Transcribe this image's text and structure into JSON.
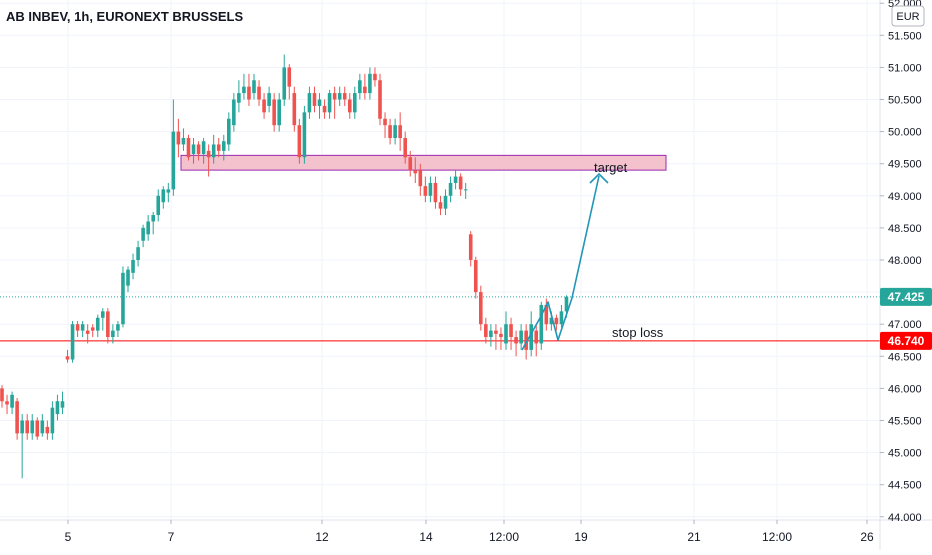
{
  "header": {
    "title": "AB INBEV, 1h, EURONEXT BRUSSELS"
  },
  "currency_button": {
    "label": "EUR"
  },
  "annotations": {
    "target_label": "target",
    "stop_loss_label": "stop loss"
  },
  "price_badges": {
    "last": "47.425",
    "stop_loss": "46.740"
  },
  "colors": {
    "up": "#26a69a",
    "down": "#ef5350",
    "stop_line": "#ff0000",
    "zone_fill": "#f4c2cc",
    "zone_border": "#9c27b0",
    "arrow": "#2196b6",
    "last_badge": "#26a69a",
    "stop_badge": "#ff0000",
    "grid": "#f0f3fa"
  },
  "chart_data": {
    "type": "candlestick",
    "title": "AB INBEV, 1h, EURONEXT BRUSSELS",
    "currency": "EUR",
    "x_ticks": [
      "5",
      "7",
      "12",
      "14",
      "12:00",
      "19",
      "21",
      "12:00",
      "26"
    ],
    "y_ticks": [
      "44.000",
      "44.500",
      "45.000",
      "45.500",
      "46.000",
      "46.500",
      "47.000",
      "47.500",
      "48.000",
      "48.500",
      "49.000",
      "49.500",
      "50.000",
      "50.500",
      "51.000",
      "51.500",
      "52.000"
    ],
    "ylim": [
      43.95,
      52.05
    ],
    "last_price": 47.425,
    "stop_loss": 46.74,
    "target_zone": [
      49.4,
      49.63
    ],
    "candles": [
      [
        46.0,
        45.8,
        46.05,
        45.7
      ],
      [
        45.8,
        45.75,
        45.9,
        45.6
      ],
      [
        45.7,
        45.9,
        45.95,
        45.6
      ],
      [
        45.8,
        45.3,
        45.85,
        45.2
      ],
      [
        45.3,
        45.5,
        45.6,
        44.6
      ],
      [
        45.5,
        45.3,
        45.6,
        45.2
      ],
      [
        45.3,
        45.5,
        45.6,
        45.2
      ],
      [
        45.5,
        45.25,
        45.55,
        45.2
      ],
      [
        45.3,
        45.5,
        45.6,
        45.25
      ],
      [
        45.4,
        45.3,
        45.5,
        45.2
      ],
      [
        45.3,
        45.7,
        45.8,
        45.2
      ],
      [
        45.6,
        45.8,
        45.9,
        45.5
      ],
      [
        45.7,
        45.8,
        45.95,
        45.6
      ],
      [
        46.5,
        46.45,
        46.6,
        46.4
      ],
      [
        46.45,
        47.0,
        47.05,
        46.4
      ],
      [
        47.0,
        46.9,
        47.05,
        46.8
      ],
      [
        46.9,
        47.0,
        47.05,
        46.8
      ],
      [
        46.9,
        46.85,
        47.0,
        46.7
      ],
      [
        46.95,
        46.9,
        47.0,
        46.8
      ],
      [
        46.9,
        47.1,
        47.15,
        46.8
      ],
      [
        47.1,
        47.2,
        47.25,
        46.9
      ],
      [
        47.2,
        46.8,
        47.25,
        46.7
      ],
      [
        46.8,
        46.9,
        47.0,
        46.7
      ],
      [
        46.9,
        47.0,
        47.05,
        46.8
      ],
      [
        47.0,
        47.8,
        47.9,
        46.95
      ],
      [
        47.6,
        47.85,
        47.9,
        47.5
      ],
      [
        47.8,
        48.0,
        48.1,
        47.7
      ],
      [
        48.0,
        48.2,
        48.3,
        47.9
      ],
      [
        48.3,
        48.5,
        48.55,
        48.2
      ],
      [
        48.4,
        48.6,
        48.7,
        48.3
      ],
      [
        48.6,
        48.7,
        48.75,
        48.4
      ],
      [
        48.7,
        49.0,
        49.1,
        48.6
      ],
      [
        48.9,
        49.1,
        49.15,
        48.8
      ],
      [
        49.05,
        49.1,
        49.2,
        48.9
      ],
      [
        49.1,
        50.0,
        50.5,
        49.0
      ],
      [
        50.0,
        49.8,
        50.2,
        49.6
      ],
      [
        49.8,
        49.9,
        50.05,
        49.7
      ],
      [
        49.9,
        49.6,
        49.95,
        49.55
      ],
      [
        49.65,
        49.8,
        49.9,
        49.5
      ],
      [
        49.8,
        49.65,
        49.85,
        49.55
      ],
      [
        49.65,
        49.85,
        49.9,
        49.5
      ],
      [
        49.7,
        49.6,
        49.8,
        49.3
      ],
      [
        49.6,
        49.8,
        49.95,
        49.5
      ],
      [
        49.8,
        49.7,
        49.9,
        49.6
      ],
      [
        49.7,
        49.85,
        49.95,
        49.55
      ],
      [
        49.8,
        50.2,
        50.3,
        49.7
      ],
      [
        50.1,
        50.5,
        50.6,
        50.0
      ],
      [
        50.45,
        50.6,
        50.8,
        50.3
      ],
      [
        50.6,
        50.7,
        50.9,
        50.5
      ],
      [
        50.7,
        50.5,
        50.9,
        50.4
      ],
      [
        50.6,
        50.8,
        50.9,
        50.5
      ],
      [
        50.7,
        50.5,
        50.8,
        50.4
      ],
      [
        50.5,
        50.3,
        50.6,
        50.2
      ],
      [
        50.4,
        50.6,
        50.7,
        50.3
      ],
      [
        50.5,
        50.1,
        50.6,
        50.0
      ],
      [
        50.1,
        50.5,
        50.6,
        50.0
      ],
      [
        50.5,
        51.0,
        51.2,
        50.4
      ],
      [
        51.0,
        50.7,
        51.05,
        50.5
      ],
      [
        50.6,
        50.1,
        50.7,
        50.0
      ],
      [
        50.1,
        49.6,
        50.2,
        49.5
      ],
      [
        49.6,
        50.3,
        50.4,
        49.5
      ],
      [
        50.3,
        50.6,
        50.7,
        50.2
      ],
      [
        50.6,
        50.4,
        50.7,
        50.3
      ],
      [
        50.4,
        50.5,
        50.6,
        50.2
      ],
      [
        50.4,
        50.3,
        50.5,
        50.2
      ],
      [
        50.3,
        50.6,
        50.65,
        50.2
      ],
      [
        50.6,
        50.5,
        50.7,
        50.2
      ],
      [
        50.5,
        50.6,
        50.7,
        50.4
      ],
      [
        50.6,
        50.5,
        50.7,
        50.4
      ],
      [
        50.5,
        50.3,
        50.6,
        50.2
      ],
      [
        50.3,
        50.6,
        50.7,
        50.2
      ],
      [
        50.6,
        50.8,
        50.9,
        50.5
      ],
      [
        50.7,
        50.6,
        50.9,
        50.5
      ],
      [
        50.6,
        50.9,
        51.0,
        50.5
      ],
      [
        50.9,
        50.8,
        51.0,
        50.7
      ],
      [
        50.8,
        50.2,
        50.9,
        50.1
      ],
      [
        50.2,
        50.1,
        50.3,
        49.9
      ],
      [
        50.1,
        49.9,
        50.2,
        49.8
      ],
      [
        49.9,
        50.1,
        50.2,
        49.8
      ],
      [
        50.1,
        49.9,
        50.3,
        49.7
      ],
      [
        49.9,
        49.6,
        50.0,
        49.5
      ],
      [
        49.6,
        49.4,
        49.7,
        49.3
      ],
      [
        49.4,
        49.35,
        49.6,
        49.2
      ],
      [
        49.4,
        49.15,
        49.5,
        49.0
      ],
      [
        49.15,
        49.0,
        49.3,
        48.9
      ],
      [
        49.0,
        49.2,
        49.3,
        48.9
      ],
      [
        49.2,
        48.9,
        49.3,
        48.8
      ],
      [
        48.9,
        48.8,
        49.0,
        48.7
      ],
      [
        48.8,
        49.0,
        49.1,
        48.7
      ],
      [
        49.0,
        49.2,
        49.3,
        48.9
      ],
      [
        49.2,
        49.3,
        49.4,
        49.1
      ],
      [
        49.3,
        49.1,
        49.35,
        49.0
      ],
      [
        49.1,
        49.1,
        49.2,
        48.95
      ],
      [
        48.4,
        48.0,
        48.45,
        47.9
      ],
      [
        48.0,
        47.5,
        48.05,
        47.4
      ],
      [
        47.5,
        47.0,
        47.6,
        46.9
      ],
      [
        47.0,
        46.8,
        47.1,
        46.7
      ],
      [
        46.8,
        46.9,
        47.0,
        46.65
      ],
      [
        46.9,
        46.85,
        47.0,
        46.6
      ],
      [
        46.85,
        46.8,
        46.95,
        46.6
      ],
      [
        46.7,
        47.0,
        47.2,
        46.6
      ],
      [
        47.0,
        46.8,
        47.1,
        46.6
      ],
      [
        46.8,
        46.7,
        46.9,
        46.5
      ],
      [
        46.7,
        46.9,
        47.0,
        46.6
      ],
      [
        46.9,
        46.6,
        47.0,
        46.45
      ],
      [
        46.6,
        47.0,
        47.2,
        46.5
      ],
      [
        46.9,
        46.7,
        47.0,
        46.5
      ],
      [
        46.7,
        47.3,
        47.35,
        46.6
      ],
      [
        47.3,
        47.0,
        47.4,
        46.9
      ],
      [
        47.0,
        47.1,
        47.2,
        46.9
      ],
      [
        47.1,
        47.0,
        47.15,
        46.9
      ],
      [
        47.0,
        47.2,
        47.3,
        46.95
      ],
      [
        47.2,
        47.425,
        47.45,
        47.1
      ]
    ]
  }
}
